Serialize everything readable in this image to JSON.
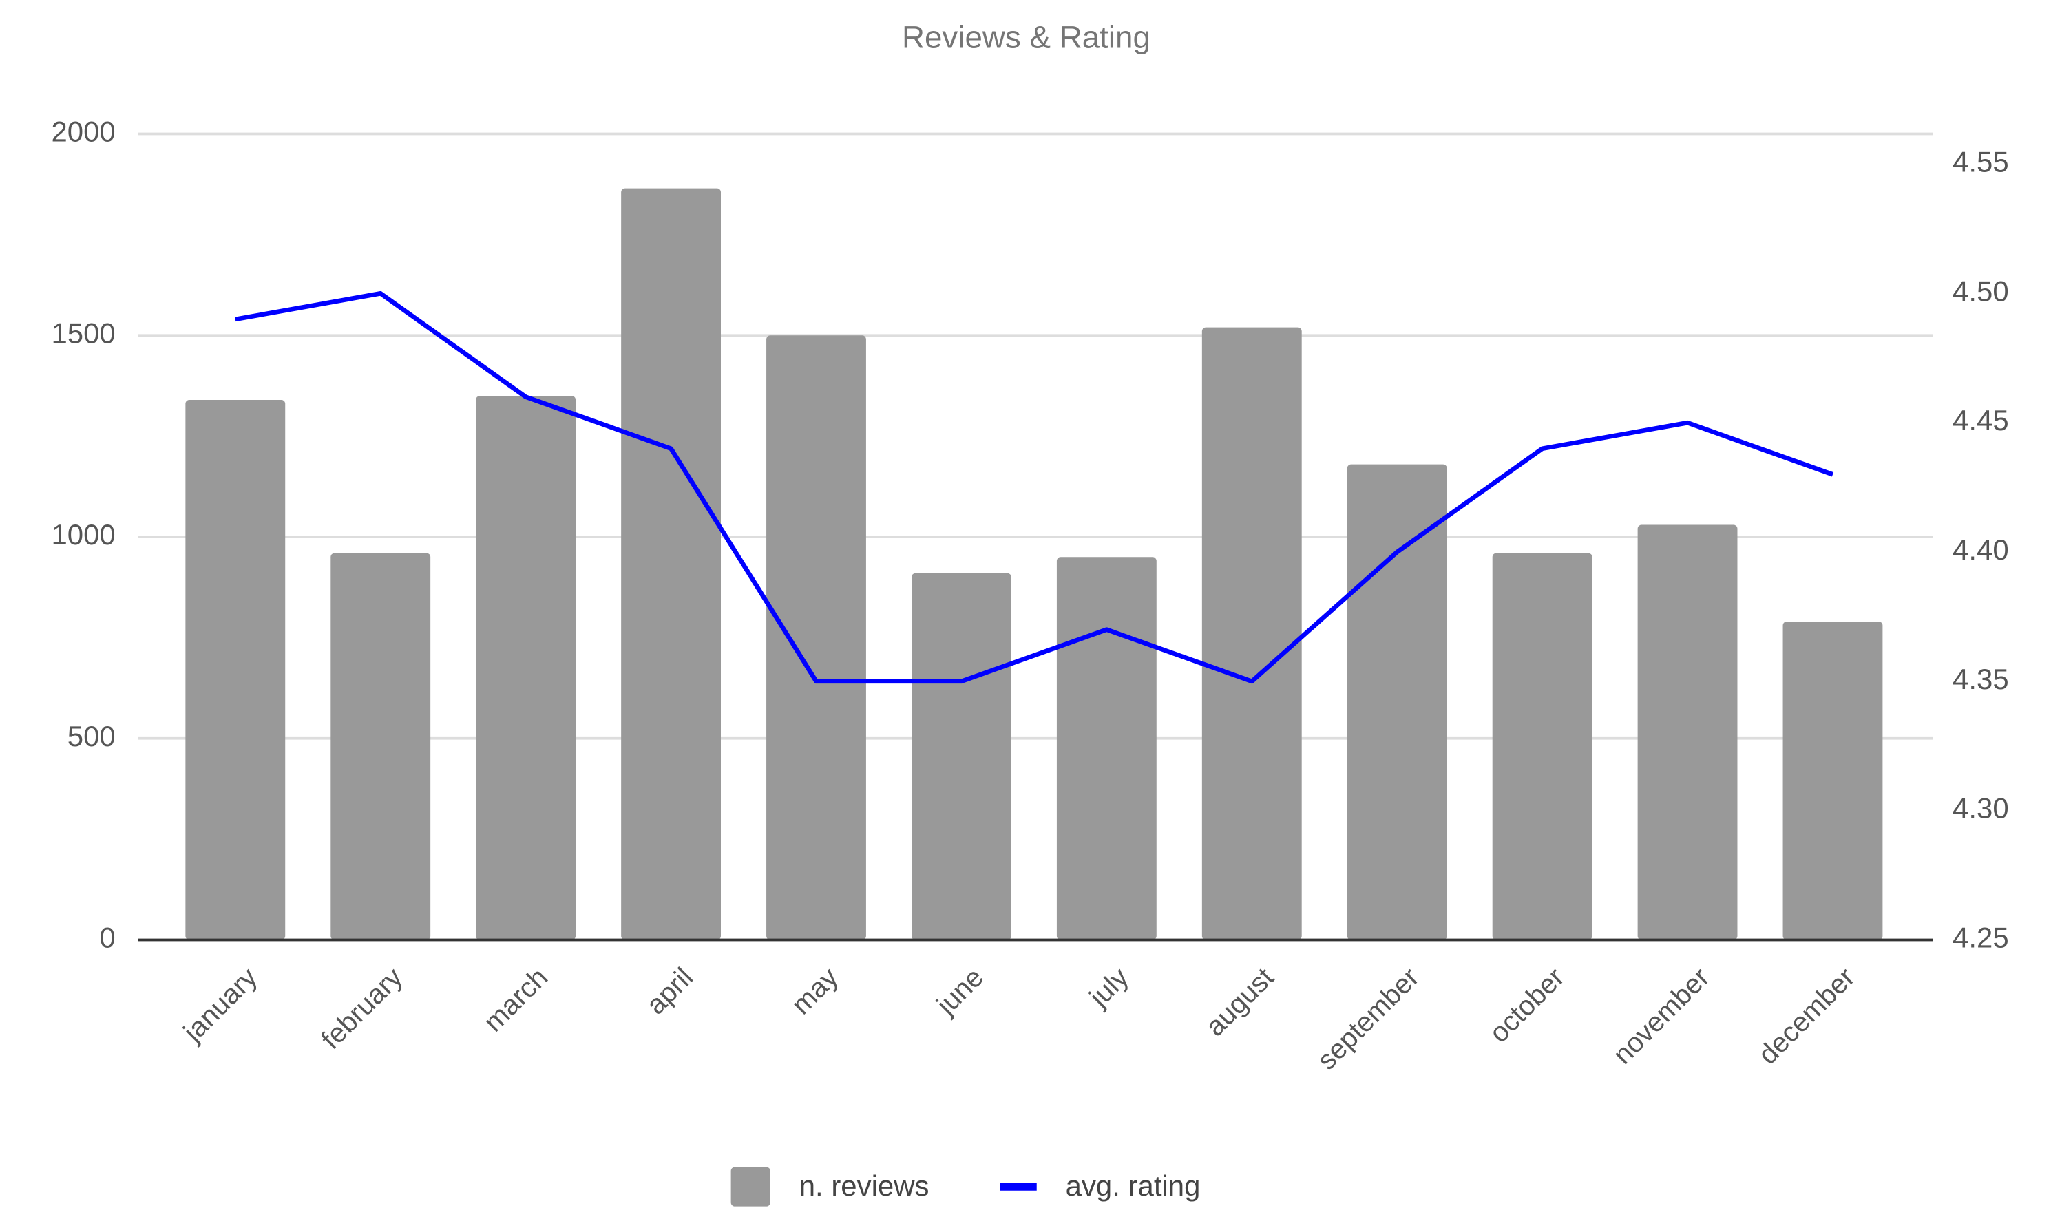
{
  "chart_data": {
    "type": "bar-line",
    "title": "Reviews & Rating",
    "categories": [
      "january",
      "february",
      "march",
      "april",
      "may",
      "june",
      "july",
      "august",
      "september",
      "october",
      "november",
      "december"
    ],
    "series": [
      {
        "name": "n. reviews",
        "type": "bar",
        "color": "#999999",
        "values": [
          1340,
          960,
          1350,
          1865,
          1500,
          910,
          950,
          1520,
          1180,
          960,
          1030,
          790
        ]
      },
      {
        "name": "avg. rating",
        "type": "line",
        "axis": "y2",
        "color": "#0000ff",
        "values": [
          4.49,
          4.5,
          4.46,
          4.44,
          4.35,
          4.35,
          4.37,
          4.35,
          4.4,
          4.44,
          4.45,
          4.43
        ]
      }
    ],
    "ylim": [
      0,
      2000
    ],
    "yticks": [
      0,
      500,
      1000,
      1500,
      2000
    ],
    "y2lim": [
      4.25,
      4.5617
    ],
    "y2ticks": [
      4.25,
      {
        "value": 4.3,
        "label": "4.30"
      },
      4.35,
      {
        "value": 4.4,
        "label": "4.40"
      },
      4.45,
      {
        "value": 4.5,
        "label": "4.50"
      },
      4.55
    ],
    "grid": true,
    "legend": "bottom"
  }
}
